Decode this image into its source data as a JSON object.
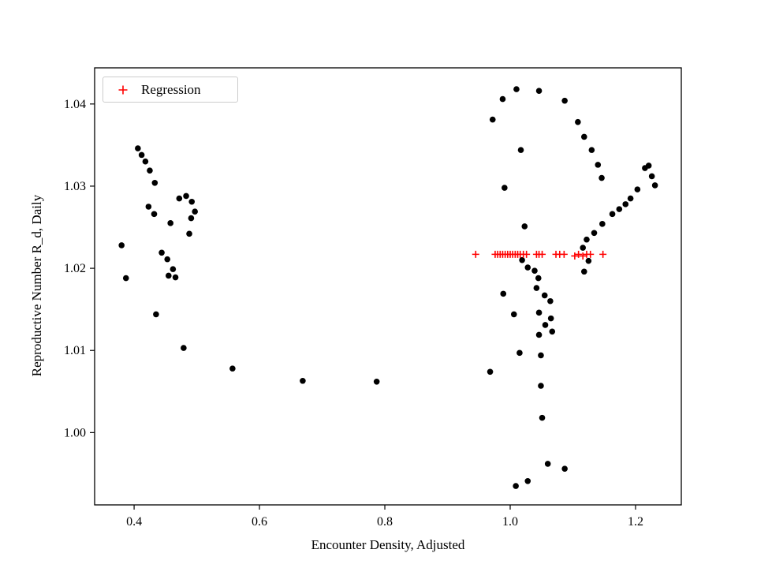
{
  "chart_data": {
    "type": "scatter",
    "title": "",
    "xlabel": "Encounter Density, Adjusted",
    "ylabel": "Reproductive Number R_d, Daily",
    "xlim": [
      0.337,
      1.273
    ],
    "ylim": [
      0.9912,
      1.0444
    ],
    "xticks": [
      0.4,
      0.6,
      0.8,
      1.0,
      1.2
    ],
    "xtick_labels": [
      "0.4",
      "0.6",
      "0.8",
      "1.0",
      "1.2"
    ],
    "yticks": [
      1.0,
      1.01,
      1.02,
      1.03,
      1.04
    ],
    "ytick_labels": [
      "1.00",
      "1.01",
      "1.02",
      "1.03",
      "1.04"
    ],
    "grid": false,
    "legend": {
      "position": "upper-left",
      "entries": [
        "Regression"
      ]
    },
    "colors": {
      "points": "#000000",
      "regression": "#ff0000",
      "axes": "#000000",
      "legend_border": "#cccccc",
      "background": "#ffffff"
    },
    "series": [
      {
        "name": "observations",
        "marker": "circle",
        "color": "#000000",
        "points": [
          [
            0.406,
            1.0346
          ],
          [
            0.412,
            1.0338
          ],
          [
            0.418,
            1.033
          ],
          [
            0.425,
            1.0319
          ],
          [
            0.433,
            1.0304
          ],
          [
            0.423,
            1.0275
          ],
          [
            0.432,
            1.0266
          ],
          [
            0.472,
            1.0285
          ],
          [
            0.483,
            1.0288
          ],
          [
            0.492,
            1.0281
          ],
          [
            0.497,
            1.0269
          ],
          [
            0.491,
            1.0261
          ],
          [
            0.458,
            1.0255
          ],
          [
            0.488,
            1.0242
          ],
          [
            0.38,
            1.0228
          ],
          [
            0.444,
            1.0219
          ],
          [
            0.453,
            1.0211
          ],
          [
            0.462,
            1.0199
          ],
          [
            0.455,
            1.0191
          ],
          [
            0.466,
            1.0189
          ],
          [
            0.387,
            1.0188
          ],
          [
            0.435,
            1.0144
          ],
          [
            0.479,
            1.0103
          ],
          [
            0.557,
            1.0078
          ],
          [
            0.669,
            1.0063
          ],
          [
            0.787,
            1.0062
          ],
          [
            0.972,
            1.0381
          ],
          [
            0.988,
            1.0406
          ],
          [
            1.01,
            1.0418
          ],
          [
            1.046,
            1.0416
          ],
          [
            1.087,
            1.0404
          ],
          [
            1.108,
            1.0378
          ],
          [
            1.118,
            1.036
          ],
          [
            1.13,
            1.0344
          ],
          [
            1.017,
            1.0344
          ],
          [
            0.991,
            1.0298
          ],
          [
            1.14,
            1.0326
          ],
          [
            1.146,
            1.031
          ],
          [
            1.023,
            1.0251
          ],
          [
            1.215,
            1.0322
          ],
          [
            1.221,
            1.0325
          ],
          [
            1.226,
            1.0312
          ],
          [
            1.231,
            1.0301
          ],
          [
            1.203,
            1.0296
          ],
          [
            1.192,
            1.0285
          ],
          [
            1.184,
            1.0278
          ],
          [
            1.174,
            1.0272
          ],
          [
            1.163,
            1.0266
          ],
          [
            1.147,
            1.0254
          ],
          [
            1.134,
            1.0243
          ],
          [
            1.122,
            1.0235
          ],
          [
            1.116,
            1.0225
          ],
          [
            1.125,
            1.0209
          ],
          [
            1.118,
            1.0196
          ],
          [
            1.019,
            1.021
          ],
          [
            1.028,
            1.0201
          ],
          [
            1.039,
            1.0197
          ],
          [
            1.045,
            1.0188
          ],
          [
            1.042,
            1.0176
          ],
          [
            1.055,
            1.0167
          ],
          [
            1.064,
            1.016
          ],
          [
            0.989,
            1.0169
          ],
          [
            1.006,
            1.0144
          ],
          [
            1.046,
            1.0146
          ],
          [
            1.065,
            1.0139
          ],
          [
            1.056,
            1.0131
          ],
          [
            1.067,
            1.0123
          ],
          [
            1.046,
            1.0119
          ],
          [
            1.015,
            1.0097
          ],
          [
            1.049,
            1.0094
          ],
          [
            0.968,
            1.0074
          ],
          [
            1.049,
            1.0057
          ],
          [
            1.051,
            1.0018
          ],
          [
            1.009,
            0.9935
          ],
          [
            1.028,
            0.9941
          ],
          [
            1.06,
            0.9962
          ],
          [
            1.087,
            0.9956
          ]
        ]
      },
      {
        "name": "Regression",
        "marker": "plus",
        "color": "#ff0000",
        "points": [
          [
            0.945,
            1.0217
          ],
          [
            0.976,
            1.0217
          ],
          [
            0.98,
            1.0217
          ],
          [
            0.984,
            1.0217
          ],
          [
            0.988,
            1.0217
          ],
          [
            0.992,
            1.0217
          ],
          [
            0.996,
            1.0217
          ],
          [
            1.0,
            1.0217
          ],
          [
            1.004,
            1.0217
          ],
          [
            1.008,
            1.0217
          ],
          [
            1.012,
            1.0217
          ],
          [
            1.016,
            1.0217
          ],
          [
            1.021,
            1.0217
          ],
          [
            1.026,
            1.0217
          ],
          [
            1.042,
            1.0217
          ],
          [
            1.046,
            1.0217
          ],
          [
            1.051,
            1.0217
          ],
          [
            1.073,
            1.0217
          ],
          [
            1.079,
            1.0217
          ],
          [
            1.086,
            1.0217
          ],
          [
            1.103,
            1.0215
          ],
          [
            1.109,
            1.0217
          ],
          [
            1.116,
            1.0215
          ],
          [
            1.122,
            1.0217
          ],
          [
            1.128,
            1.0217
          ],
          [
            1.148,
            1.0217
          ]
        ]
      }
    ]
  }
}
